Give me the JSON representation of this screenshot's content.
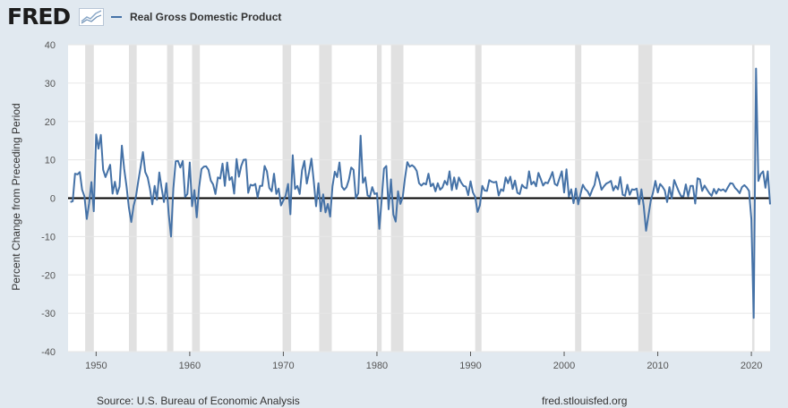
{
  "header": {
    "logo_text": "FRED",
    "logo_icon": "line-chart-icon",
    "legend_label": "Real Gross Domestic Product",
    "line_color": "#4572a7"
  },
  "footer": {
    "source": "Source: U.S. Bureau of Economic Analysis",
    "url": "fred.stlouisfed.org"
  },
  "chart_data": {
    "type": "line",
    "title": "",
    "xlabel": "",
    "ylabel": "Percent Change from Preceding Period",
    "series": [
      {
        "name": "Real Gross Domestic Product",
        "color": "#4572a7"
      }
    ],
    "xlim": [
      1947.0,
      2022.0
    ],
    "ylim": [
      -40,
      40
    ],
    "y_ticks": [
      40,
      30,
      20,
      10,
      0,
      -10,
      -20,
      -30,
      -40
    ],
    "y_tick_labels": [
      "40",
      "30",
      "20",
      "10",
      "0",
      "-10",
      "-20",
      "-30",
      "-40"
    ],
    "x_ticks": [
      1950,
      1960,
      1970,
      1980,
      1990,
      2000,
      2010,
      2020
    ],
    "x_tick_labels": [
      "1950",
      "1960",
      "1970",
      "1980",
      "1990",
      "2000",
      "2010",
      "2020"
    ],
    "recessions": [
      [
        1948.83,
        1949.75
      ],
      [
        1953.5,
        1954.33
      ],
      [
        1957.58,
        1958.25
      ],
      [
        1960.25,
        1961.08
      ],
      [
        1969.92,
        1970.83
      ],
      [
        1973.83,
        1975.17
      ],
      [
        1980.0,
        1980.5
      ],
      [
        1981.5,
        1982.83
      ],
      [
        1990.5,
        1991.17
      ],
      [
        2001.17,
        2001.83
      ],
      [
        2007.92,
        2009.42
      ],
      [
        2020.08,
        2020.33
      ]
    ],
    "points": [
      [
        1947.25,
        -1.0
      ],
      [
        1947.5,
        -0.8
      ],
      [
        1947.75,
        6.4
      ],
      [
        1948.0,
        6.2
      ],
      [
        1948.25,
        6.8
      ],
      [
        1948.5,
        2.2
      ],
      [
        1948.75,
        0.5
      ],
      [
        1949.0,
        -5.4
      ],
      [
        1949.25,
        -1.4
      ],
      [
        1949.5,
        4.2
      ],
      [
        1949.75,
        -3.4
      ],
      [
        1950.0,
        16.6
      ],
      [
        1950.25,
        12.9
      ],
      [
        1950.5,
        16.5
      ],
      [
        1950.75,
        7.4
      ],
      [
        1951.0,
        5.5
      ],
      [
        1951.25,
        7.1
      ],
      [
        1951.5,
        8.7
      ],
      [
        1951.75,
        1.2
      ],
      [
        1952.0,
        4.3
      ],
      [
        1952.25,
        1.1
      ],
      [
        1952.5,
        3.0
      ],
      [
        1952.75,
        13.7
      ],
      [
        1953.0,
        7.6
      ],
      [
        1953.25,
        3.1
      ],
      [
        1953.5,
        -2.4
      ],
      [
        1953.75,
        -6.2
      ],
      [
        1954.0,
        -2.0
      ],
      [
        1954.25,
        0.4
      ],
      [
        1954.5,
        4.4
      ],
      [
        1954.75,
        8.1
      ],
      [
        1955.0,
        12.0
      ],
      [
        1955.25,
        6.8
      ],
      [
        1955.5,
        5.4
      ],
      [
        1955.75,
        2.4
      ],
      [
        1956.0,
        -1.6
      ],
      [
        1956.25,
        3.2
      ],
      [
        1956.5,
        -0.4
      ],
      [
        1956.75,
        6.7
      ],
      [
        1957.0,
        2.6
      ],
      [
        1957.25,
        -1.0
      ],
      [
        1957.5,
        3.9
      ],
      [
        1957.75,
        -4.1
      ],
      [
        1958.0,
        -10.0
      ],
      [
        1958.25,
        2.6
      ],
      [
        1958.5,
        9.6
      ],
      [
        1958.75,
        9.7
      ],
      [
        1959.0,
        8.0
      ],
      [
        1959.25,
        9.7
      ],
      [
        1959.5,
        0.3
      ],
      [
        1959.75,
        1.1
      ],
      [
        1960.0,
        9.3
      ],
      [
        1960.25,
        -2.1
      ],
      [
        1960.5,
        2.1
      ],
      [
        1960.75,
        -5.0
      ],
      [
        1961.0,
        2.7
      ],
      [
        1961.25,
        7.6
      ],
      [
        1961.5,
        8.2
      ],
      [
        1961.75,
        8.3
      ],
      [
        1962.0,
        7.4
      ],
      [
        1962.25,
        4.6
      ],
      [
        1962.5,
        3.6
      ],
      [
        1962.75,
        1.1
      ],
      [
        1963.0,
        5.4
      ],
      [
        1963.25,
        5.1
      ],
      [
        1963.5,
        9.0
      ],
      [
        1963.75,
        3.2
      ],
      [
        1964.0,
        9.3
      ],
      [
        1964.25,
        4.7
      ],
      [
        1964.5,
        5.5
      ],
      [
        1964.75,
        1.2
      ],
      [
        1965.0,
        10.2
      ],
      [
        1965.25,
        5.6
      ],
      [
        1965.5,
        8.4
      ],
      [
        1965.75,
        10.0
      ],
      [
        1966.0,
        10.1
      ],
      [
        1966.25,
        1.4
      ],
      [
        1966.5,
        3.5
      ],
      [
        1966.75,
        3.3
      ],
      [
        1967.0,
        3.7
      ],
      [
        1967.25,
        0.2
      ],
      [
        1967.5,
        3.2
      ],
      [
        1967.75,
        3.2
      ],
      [
        1968.0,
        8.4
      ],
      [
        1968.25,
        7.0
      ],
      [
        1968.5,
        2.7
      ],
      [
        1968.75,
        1.8
      ],
      [
        1969.0,
        6.4
      ],
      [
        1969.25,
        1.1
      ],
      [
        1969.5,
        2.5
      ],
      [
        1969.75,
        -1.9
      ],
      [
        1970.0,
        -0.6
      ],
      [
        1970.25,
        0.7
      ],
      [
        1970.5,
        3.7
      ],
      [
        1970.75,
        -4.2
      ],
      [
        1971.0,
        11.2
      ],
      [
        1971.25,
        2.4
      ],
      [
        1971.5,
        3.2
      ],
      [
        1971.75,
        1.1
      ],
      [
        1972.0,
        7.3
      ],
      [
        1972.25,
        9.7
      ],
      [
        1972.5,
        3.8
      ],
      [
        1972.75,
        6.8
      ],
      [
        1973.0,
        10.3
      ],
      [
        1973.25,
        4.4
      ],
      [
        1973.5,
        -2.1
      ],
      [
        1973.75,
        3.9
      ],
      [
        1974.0,
        -3.4
      ],
      [
        1974.25,
        1.0
      ],
      [
        1974.5,
        -3.7
      ],
      [
        1974.75,
        -1.5
      ],
      [
        1975.0,
        -4.8
      ],
      [
        1975.25,
        3.1
      ],
      [
        1975.5,
        6.9
      ],
      [
        1975.75,
        5.5
      ],
      [
        1976.0,
        9.3
      ],
      [
        1976.25,
        3.0
      ],
      [
        1976.5,
        2.2
      ],
      [
        1976.75,
        2.9
      ],
      [
        1977.0,
        4.8
      ],
      [
        1977.25,
        8.0
      ],
      [
        1977.5,
        7.4
      ],
      [
        1977.75,
        0.0
      ],
      [
        1978.0,
        1.3
      ],
      [
        1978.25,
        16.3
      ],
      [
        1978.5,
        4.0
      ],
      [
        1978.75,
        5.4
      ],
      [
        1979.0,
        0.7
      ],
      [
        1979.25,
        0.4
      ],
      [
        1979.5,
        2.9
      ],
      [
        1979.75,
        1.1
      ],
      [
        1980.0,
        1.3
      ],
      [
        1980.25,
        -8.0
      ],
      [
        1980.5,
        -0.5
      ],
      [
        1980.75,
        7.7
      ],
      [
        1981.0,
        8.4
      ],
      [
        1981.25,
        -2.9
      ],
      [
        1981.5,
        4.9
      ],
      [
        1981.75,
        -4.3
      ],
      [
        1982.0,
        -6.1
      ],
      [
        1982.25,
        1.8
      ],
      [
        1982.5,
        -1.5
      ],
      [
        1982.75,
        0.2
      ],
      [
        1983.0,
        5.3
      ],
      [
        1983.25,
        9.4
      ],
      [
        1983.5,
        8.2
      ],
      [
        1983.75,
        8.6
      ],
      [
        1984.0,
        8.1
      ],
      [
        1984.25,
        7.1
      ],
      [
        1984.5,
        3.9
      ],
      [
        1984.75,
        3.3
      ],
      [
        1985.0,
        3.9
      ],
      [
        1985.25,
        3.6
      ],
      [
        1985.5,
        6.4
      ],
      [
        1985.75,
        3.1
      ],
      [
        1986.0,
        3.8
      ],
      [
        1986.25,
        1.8
      ],
      [
        1986.5,
        3.9
      ],
      [
        1986.75,
        2.2
      ],
      [
        1987.0,
        2.8
      ],
      [
        1987.25,
        4.5
      ],
      [
        1987.5,
        3.5
      ],
      [
        1987.75,
        7.0
      ],
      [
        1988.0,
        2.1
      ],
      [
        1988.25,
        5.4
      ],
      [
        1988.5,
        2.4
      ],
      [
        1988.75,
        5.4
      ],
      [
        1989.0,
        4.1
      ],
      [
        1989.25,
        3.2
      ],
      [
        1989.5,
        3.0
      ],
      [
        1989.75,
        0.8
      ],
      [
        1990.0,
        4.4
      ],
      [
        1990.25,
        1.5
      ],
      [
        1990.5,
        0.3
      ],
      [
        1990.75,
        -3.6
      ],
      [
        1991.0,
        -1.9
      ],
      [
        1991.25,
        3.2
      ],
      [
        1991.5,
        2.0
      ],
      [
        1991.75,
        1.9
      ],
      [
        1992.0,
        4.7
      ],
      [
        1992.25,
        4.3
      ],
      [
        1992.5,
        4.1
      ],
      [
        1992.75,
        4.3
      ],
      [
        1993.0,
        0.7
      ],
      [
        1993.25,
        2.3
      ],
      [
        1993.5,
        1.9
      ],
      [
        1993.75,
        5.4
      ],
      [
        1994.0,
        3.9
      ],
      [
        1994.25,
        5.6
      ],
      [
        1994.5,
        2.4
      ],
      [
        1994.75,
        4.6
      ],
      [
        1995.0,
        1.4
      ],
      [
        1995.25,
        1.1
      ],
      [
        1995.5,
        3.5
      ],
      [
        1995.75,
        2.8
      ],
      [
        1996.0,
        2.6
      ],
      [
        1996.25,
        7.0
      ],
      [
        1996.5,
        3.6
      ],
      [
        1996.75,
        4.3
      ],
      [
        1997.0,
        3.1
      ],
      [
        1997.25,
        6.6
      ],
      [
        1997.5,
        5.0
      ],
      [
        1997.75,
        3.3
      ],
      [
        1998.0,
        4.1
      ],
      [
        1998.25,
        3.9
      ],
      [
        1998.5,
        5.2
      ],
      [
        1998.75,
        6.8
      ],
      [
        1999.0,
        3.7
      ],
      [
        1999.25,
        3.3
      ],
      [
        1999.5,
        5.2
      ],
      [
        1999.75,
        7.0
      ],
      [
        2000.0,
        1.5
      ],
      [
        2000.25,
        7.5
      ],
      [
        2000.5,
        0.4
      ],
      [
        2000.75,
        2.3
      ],
      [
        2001.0,
        -1.3
      ],
      [
        2001.25,
        2.5
      ],
      [
        2001.5,
        -1.6
      ],
      [
        2001.75,
        1.1
      ],
      [
        2002.0,
        3.5
      ],
      [
        2002.25,
        2.4
      ],
      [
        2002.5,
        1.8
      ],
      [
        2002.75,
        0.6
      ],
      [
        2003.0,
        2.2
      ],
      [
        2003.25,
        3.5
      ],
      [
        2003.5,
        6.8
      ],
      [
        2003.75,
        4.7
      ],
      [
        2004.0,
        2.2
      ],
      [
        2004.25,
        3.1
      ],
      [
        2004.5,
        3.8
      ],
      [
        2004.75,
        4.1
      ],
      [
        2005.0,
        4.5
      ],
      [
        2005.25,
        2.0
      ],
      [
        2005.5,
        3.2
      ],
      [
        2005.75,
        2.3
      ],
      [
        2006.0,
        5.5
      ],
      [
        2006.25,
        0.9
      ],
      [
        2006.5,
        0.6
      ],
      [
        2006.75,
        3.5
      ],
      [
        2007.0,
        0.9
      ],
      [
        2007.25,
        2.3
      ],
      [
        2007.5,
        2.2
      ],
      [
        2007.75,
        2.5
      ],
      [
        2008.0,
        -1.6
      ],
      [
        2008.25,
        2.3
      ],
      [
        2008.5,
        -2.1
      ],
      [
        2008.75,
        -8.5
      ],
      [
        2009.0,
        -4.6
      ],
      [
        2009.25,
        -0.7
      ],
      [
        2009.5,
        1.5
      ],
      [
        2009.75,
        4.5
      ],
      [
        2010.0,
        1.5
      ],
      [
        2010.25,
        3.7
      ],
      [
        2010.5,
        3.0
      ],
      [
        2010.75,
        2.0
      ],
      [
        2011.0,
        -1.0
      ],
      [
        2011.25,
        2.9
      ],
      [
        2011.5,
        -0.1
      ],
      [
        2011.75,
        4.7
      ],
      [
        2012.0,
        3.2
      ],
      [
        2012.25,
        1.7
      ],
      [
        2012.5,
        0.5
      ],
      [
        2012.75,
        0.5
      ],
      [
        2013.0,
        3.6
      ],
      [
        2013.25,
        0.5
      ],
      [
        2013.5,
        3.2
      ],
      [
        2013.75,
        3.2
      ],
      [
        2014.0,
        -1.4
      ],
      [
        2014.25,
        5.2
      ],
      [
        2014.5,
        4.9
      ],
      [
        2014.75,
        1.9
      ],
      [
        2015.0,
        3.3
      ],
      [
        2015.25,
        2.3
      ],
      [
        2015.5,
        1.3
      ],
      [
        2015.75,
        0.6
      ],
      [
        2016.0,
        2.4
      ],
      [
        2016.25,
        1.2
      ],
      [
        2016.5,
        2.4
      ],
      [
        2016.75,
        2.0
      ],
      [
        2017.0,
        2.3
      ],
      [
        2017.25,
        1.7
      ],
      [
        2017.5,
        2.9
      ],
      [
        2017.75,
        3.9
      ],
      [
        2018.0,
        3.8
      ],
      [
        2018.25,
        2.7
      ],
      [
        2018.5,
        2.1
      ],
      [
        2018.75,
        1.3
      ],
      [
        2019.0,
        2.9
      ],
      [
        2019.25,
        3.4
      ],
      [
        2019.5,
        2.8
      ],
      [
        2019.75,
        1.9
      ],
      [
        2020.0,
        -5.5
      ],
      [
        2020.25,
        -31.2
      ],
      [
        2020.5,
        33.8
      ],
      [
        2020.75,
        4.5
      ],
      [
        2021.0,
        6.3
      ],
      [
        2021.25,
        7.0
      ],
      [
        2021.5,
        2.7
      ],
      [
        2021.75,
        7.0
      ],
      [
        2022.0,
        -1.6
      ]
    ]
  }
}
